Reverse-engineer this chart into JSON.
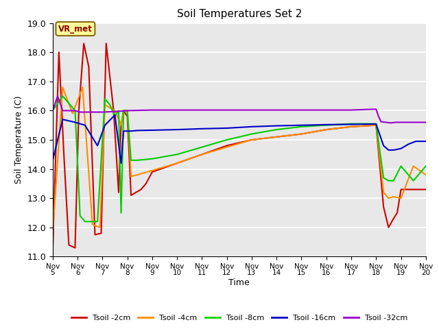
{
  "title": "Soil Temperatures Set 2",
  "xlabel": "Time",
  "ylabel": "Soil Temperature (C)",
  "xlim": [
    0,
    15
  ],
  "ylim": [
    11.0,
    19.0
  ],
  "yticks": [
    11.0,
    12.0,
    13.0,
    14.0,
    15.0,
    16.0,
    17.0,
    18.0,
    19.0
  ],
  "xtick_labels": [
    "Nov 5",
    "Nov 6",
    "Nov 7",
    "Nov 8",
    "Nov 9",
    "Nov 10",
    "Nov 11",
    "Nov 12",
    "Nov 13",
    "Nov 14",
    "Nov 15",
    "Nov 16",
    "Nov 17",
    "Nov 18",
    "Nov 19",
    "Nov 20"
  ],
  "bg_color": "#e8e8e8",
  "annotation_text": "VR_met",
  "annotation_box_color": "#ffff99",
  "annotation_text_color": "#8b0000",
  "series": {
    "Tsoil -2cm": {
      "color": "#cc0000",
      "x": [
        0.0,
        0.25,
        0.45,
        0.65,
        0.9,
        1.05,
        1.25,
        1.45,
        1.7,
        1.95,
        2.15,
        2.45,
        2.65,
        2.75,
        2.85,
        3.0,
        3.15,
        3.35,
        3.55,
        3.75,
        4.0,
        5.0,
        6.0,
        7.0,
        8.0,
        9.0,
        10.0,
        11.0,
        12.0,
        13.0,
        13.3,
        13.5,
        13.7,
        13.85,
        14.0,
        14.5,
        15.0
      ],
      "y": [
        11.2,
        18.0,
        14.5,
        11.4,
        11.3,
        16.0,
        18.3,
        17.5,
        11.75,
        11.8,
        18.3,
        16.0,
        13.2,
        15.5,
        16.0,
        15.8,
        13.1,
        13.2,
        13.3,
        13.5,
        13.9,
        14.2,
        14.5,
        14.8,
        15.0,
        15.1,
        15.2,
        15.35,
        15.45,
        15.5,
        12.7,
        12.0,
        12.3,
        12.5,
        13.3,
        13.3,
        13.3
      ]
    },
    "Tsoil -4cm": {
      "color": "#ff8c00",
      "x": [
        0.0,
        0.4,
        0.8,
        1.2,
        1.6,
        1.9,
        2.1,
        2.5,
        2.75,
        2.85,
        3.0,
        3.15,
        3.4,
        4.0,
        5.0,
        6.0,
        7.0,
        8.0,
        9.0,
        10.0,
        11.0,
        12.0,
        13.0,
        13.3,
        13.5,
        13.7,
        14.0,
        14.5,
        15.0
      ],
      "y": [
        11.8,
        16.8,
        15.9,
        16.8,
        12.1,
        12.0,
        16.2,
        16.0,
        15.5,
        16.0,
        16.0,
        13.75,
        13.8,
        13.95,
        14.2,
        14.5,
        14.75,
        15.0,
        15.1,
        15.2,
        15.35,
        15.45,
        15.5,
        13.2,
        13.0,
        13.05,
        13.0,
        14.1,
        13.8
      ]
    },
    "Tsoil -8cm": {
      "color": "#00cc00",
      "x": [
        0.0,
        0.4,
        0.9,
        1.1,
        1.3,
        1.8,
        2.1,
        2.3,
        2.5,
        2.65,
        2.75,
        2.85,
        3.0,
        3.15,
        3.4,
        4.0,
        5.0,
        6.0,
        7.0,
        8.0,
        9.0,
        10.0,
        11.0,
        12.0,
        13.0,
        13.3,
        13.5,
        13.7,
        14.0,
        14.5,
        15.0
      ],
      "y": [
        16.0,
        16.5,
        16.0,
        12.4,
        12.2,
        12.2,
        16.4,
        16.2,
        15.8,
        16.0,
        12.5,
        16.0,
        16.0,
        14.3,
        14.3,
        14.35,
        14.5,
        14.75,
        15.0,
        15.2,
        15.35,
        15.45,
        15.5,
        15.55,
        15.55,
        13.7,
        13.6,
        13.6,
        14.1,
        13.6,
        14.1
      ]
    },
    "Tsoil -16cm": {
      "color": "#0000cc",
      "x": [
        0.0,
        0.4,
        0.9,
        1.3,
        1.8,
        2.1,
        2.5,
        2.75,
        2.85,
        3.0,
        3.15,
        3.4,
        4.0,
        5.0,
        6.0,
        7.0,
        8.0,
        9.0,
        10.0,
        11.0,
        12.0,
        13.0,
        13.3,
        13.5,
        13.7,
        14.0,
        14.3,
        14.6,
        15.0
      ],
      "y": [
        14.3,
        15.7,
        15.6,
        15.5,
        14.8,
        15.5,
        15.85,
        14.2,
        15.3,
        15.3,
        15.3,
        15.32,
        15.33,
        15.35,
        15.38,
        15.4,
        15.45,
        15.48,
        15.5,
        15.52,
        15.53,
        15.54,
        14.8,
        14.65,
        14.65,
        14.7,
        14.85,
        14.95,
        14.95
      ]
    },
    "Tsoil -32cm": {
      "color": "#9900cc",
      "x": [
        0.0,
        0.2,
        0.4,
        0.9,
        1.1,
        1.5,
        2.0,
        2.5,
        3.0,
        4.0,
        5.0,
        6.0,
        7.0,
        8.0,
        9.0,
        10.0,
        11.0,
        12.0,
        13.0,
        13.1,
        13.2,
        13.4,
        13.6,
        13.8,
        14.0,
        14.5,
        15.0
      ],
      "y": [
        16.0,
        16.5,
        16.0,
        16.0,
        15.95,
        15.95,
        15.95,
        15.97,
        16.0,
        16.02,
        16.02,
        16.02,
        16.02,
        16.02,
        16.02,
        16.02,
        16.02,
        16.02,
        16.05,
        15.8,
        15.62,
        15.6,
        15.58,
        15.6,
        15.6,
        15.6,
        15.6
      ]
    }
  },
  "legend_entries": [
    "Tsoil -2cm",
    "Tsoil -4cm",
    "Tsoil -8cm",
    "Tsoil -16cm",
    "Tsoil -32cm"
  ],
  "legend_colors": [
    "#cc0000",
    "#ff8c00",
    "#00cc00",
    "#0000cc",
    "#9900cc"
  ]
}
